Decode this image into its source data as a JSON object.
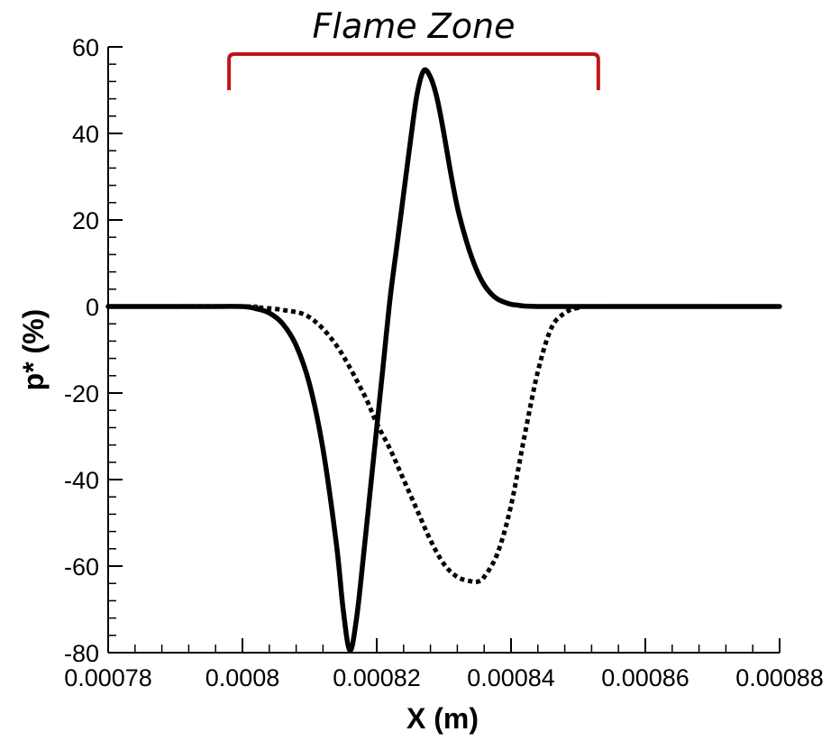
{
  "chart_data": {
    "type": "line",
    "xlabel": "X (m)",
    "ylabel": "p* (%)",
    "xlim": [
      0.00078,
      0.00088
    ],
    "ylim": [
      -80,
      60
    ],
    "x_ticks": [
      "0.00078",
      "0.0008",
      "0.00082",
      "0.00084",
      "0.00086",
      "0.00088"
    ],
    "y_ticks": [
      "60",
      "40",
      "20",
      "0",
      "-20",
      "-40",
      "-60",
      "-80"
    ],
    "grid": false,
    "annotation": {
      "label": "Flame Zone",
      "x_start": 0.000798,
      "x_end": 0.000853,
      "color": "#c0141c"
    },
    "series": [
      {
        "style": "solid",
        "color": "#000000",
        "x": [
          0.00078,
          0.000795,
          0.0008,
          0.000802,
          0.000804,
          0.000806,
          0.000808,
          0.00081,
          0.000812,
          0.000814,
          0.000815,
          0.000816,
          0.000817,
          0.000818,
          0.000819,
          0.00082,
          0.000821,
          0.000822,
          0.000823,
          0.000824,
          0.000825,
          0.000826,
          0.000827,
          0.000828,
          0.000829,
          0.00083,
          0.000831,
          0.000832,
          0.000833,
          0.000834,
          0.000835,
          0.000836,
          0.000837,
          0.000838,
          0.000839,
          0.00084,
          0.000841,
          0.000842,
          0.000844,
          0.000846,
          0.00085,
          0.00088
        ],
        "y": [
          0,
          0,
          0,
          -0.5,
          -1.5,
          -4,
          -9,
          -18,
          -33,
          -55,
          -70,
          -79.5,
          -72,
          -58,
          -43,
          -28,
          -13,
          2,
          14,
          26,
          38,
          49,
          54.5,
          53,
          48,
          40,
          31,
          23,
          17,
          12,
          8,
          5,
          3,
          1.7,
          1,
          0.5,
          0.3,
          0.1,
          0,
          0,
          0,
          0
        ]
      },
      {
        "style": "dotted",
        "color": "#000000",
        "x": [
          0.00078,
          0.0008,
          0.000802,
          0.000806,
          0.00081,
          0.000814,
          0.000818,
          0.00082,
          0.000822,
          0.000824,
          0.000826,
          0.000828,
          0.00083,
          0.000832,
          0.000834,
          0.000835,
          0.000836,
          0.000838,
          0.00084,
          0.000842,
          0.000844,
          0.000846,
          0.000848,
          0.00085,
          0.000852,
          0.00088
        ],
        "y": [
          0,
          0,
          -0.2,
          -0.8,
          -2.5,
          -9,
          -20,
          -27,
          -33,
          -40,
          -47,
          -54,
          -59.5,
          -62.5,
          -63.5,
          -63.6,
          -62.5,
          -57,
          -46,
          -30,
          -15,
          -5,
          -1.5,
          -0.3,
          0,
          0
        ]
      }
    ]
  }
}
